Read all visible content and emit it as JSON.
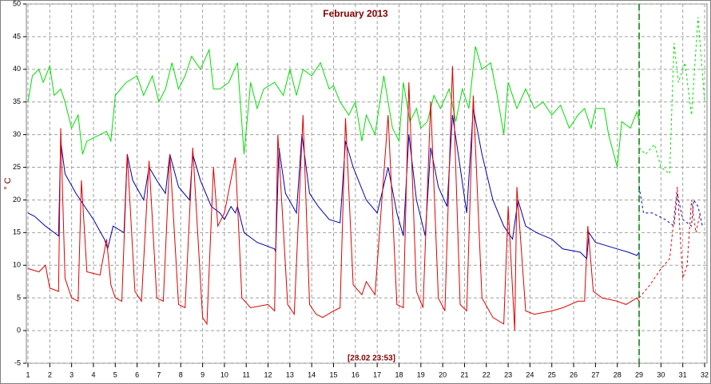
{
  "chart_data": {
    "type": "line",
    "title": "February 2013",
    "ylabel": "° C",
    "annotation": "[28.02 23:53]",
    "now_line": 29,
    "now_line_color": "#008000",
    "xlim": [
      1,
      32
    ],
    "xticks": [
      1,
      2,
      3,
      4,
      5,
      6,
      7,
      8,
      9,
      10,
      11,
      12,
      13,
      14,
      15,
      16,
      17,
      18,
      19,
      20,
      21,
      22,
      23,
      24,
      25,
      26,
      27,
      28,
      29,
      30,
      31,
      32
    ],
    "ylim": [
      -5,
      50
    ],
    "yticks": [
      -5,
      0,
      5,
      10,
      15,
      20,
      25,
      30,
      35,
      40,
      45,
      50
    ],
    "grid": true,
    "series": [
      {
        "color": "#00e000",
        "dashed": false,
        "x": [
          1.0,
          1.2,
          1.5,
          1.7,
          2.0,
          2.2,
          2.5,
          2.7,
          3.0,
          3.3,
          3.5,
          3.7,
          4.3,
          4.6,
          4.8,
          5.0,
          5.5,
          6.0,
          6.3,
          6.7,
          7.0,
          7.3,
          7.6,
          7.9,
          8.2,
          8.5,
          8.9,
          9.3,
          9.5,
          9.8,
          10.2,
          10.6,
          10.9,
          11.2,
          11.5,
          11.8,
          12.3,
          12.7,
          13.0,
          13.3,
          13.6,
          14.0,
          14.4,
          14.8,
          15.0,
          15.3,
          15.7,
          16.0,
          16.3,
          16.5,
          16.9,
          17.3,
          17.7,
          18.0,
          18.2,
          18.5,
          18.8,
          19.0,
          19.3,
          19.6,
          19.9,
          20.3,
          20.6,
          20.9,
          21.2,
          21.5,
          21.8,
          22.2,
          22.5,
          22.8,
          23.0,
          23.4,
          23.8,
          24.2,
          24.6,
          25.0,
          25.4,
          25.8,
          26.2,
          26.5,
          26.8,
          27.0,
          27.4,
          27.6,
          28.0,
          28.2,
          28.6,
          28.9,
          29.0
        ],
        "values": [
          35,
          39,
          40,
          38,
          40.5,
          36,
          37,
          35,
          31,
          33,
          27,
          29,
          30,
          30.5,
          29,
          36,
          38,
          39,
          36,
          39,
          35,
          37,
          41,
          37,
          39,
          42,
          40,
          43,
          37,
          37,
          38,
          41,
          27,
          38,
          34,
          37,
          38,
          36,
          40,
          36,
          40,
          39,
          41,
          37,
          37.5,
          35,
          33,
          35,
          29,
          33,
          30,
          39,
          31,
          29,
          38,
          32,
          34,
          31,
          32,
          36,
          34,
          37,
          32,
          37,
          34,
          43.5,
          40,
          41,
          36,
          30,
          38,
          34,
          37,
          34,
          35,
          33,
          34.5,
          31,
          33,
          34,
          31,
          34,
          34,
          30,
          25,
          32,
          31,
          33.5,
          32
        ]
      },
      {
        "color": "#00e000",
        "dashed": true,
        "x": [
          29.0,
          29.3,
          29.7,
          30.0,
          30.4,
          30.6,
          30.8,
          31.1,
          31.4,
          31.7,
          32.0
        ],
        "values": [
          28,
          27,
          28.5,
          25,
          24,
          44,
          38,
          41,
          33,
          48,
          35
        ]
      },
      {
        "color": "#0000b0",
        "dashed": false,
        "x": [
          1.0,
          1.3,
          1.8,
          2.2,
          2.4,
          2.5,
          2.7,
          3.2,
          3.6,
          4.0,
          4.5,
          4.65,
          4.9,
          5.4,
          5.55,
          5.8,
          6.3,
          6.55,
          6.9,
          7.3,
          7.5,
          7.9,
          8.4,
          8.55,
          8.9,
          9.4,
          9.8,
          10.0,
          10.3,
          10.5,
          10.6,
          10.9,
          11.5,
          12.3,
          12.35,
          12.5,
          12.8,
          13.3,
          13.55,
          13.9,
          14.3,
          14.8,
          15.3,
          15.55,
          15.9,
          16.5,
          17.0,
          17.5,
          17.9,
          18.2,
          18.45,
          18.8,
          19.2,
          19.45,
          19.8,
          20.2,
          20.45,
          20.8,
          21.1,
          21.4,
          21.8,
          22.3,
          22.8,
          23.2,
          23.45,
          23.8,
          24.3,
          25.0,
          25.5,
          26.3,
          26.6,
          26.7,
          27.0,
          27.5,
          28.0,
          28.5,
          28.9,
          29.0
        ],
        "values": [
          18,
          17.5,
          16,
          15,
          14.5,
          29,
          24,
          21,
          19,
          17,
          14,
          12.5,
          16,
          15,
          27,
          23,
          20,
          25,
          23,
          21,
          27,
          22,
          20,
          27,
          23,
          19,
          18,
          17,
          19,
          18,
          19,
          15,
          13.5,
          12.5,
          12,
          28,
          21,
          18,
          30,
          21,
          19,
          17,
          16.5,
          29,
          25,
          20,
          18,
          25,
          18,
          14.5,
          30,
          20,
          14.5,
          28,
          22,
          19,
          33,
          25,
          18,
          34,
          27,
          20,
          16,
          14,
          20,
          16,
          15,
          14,
          12.5,
          12,
          11,
          15,
          13.5,
          13,
          12.5,
          12,
          11.5,
          12
        ]
      },
      {
        "color": "#0000b0",
        "dashed": true,
        "x": [
          29.0,
          29.2,
          29.6,
          30.2,
          30.6,
          30.75,
          31.0,
          31.4,
          31.5,
          31.7,
          31.9
        ],
        "values": [
          22,
          18,
          18,
          17,
          16,
          21,
          17,
          16,
          20,
          19,
          16
        ]
      },
      {
        "color": "#e00000",
        "dashed": false,
        "x": [
          1.0,
          1.5,
          1.8,
          2.0,
          2.4,
          2.5,
          2.7,
          3.0,
          3.3,
          3.45,
          3.7,
          4.3,
          4.6,
          4.8,
          5.0,
          5.3,
          5.55,
          5.9,
          6.2,
          6.55,
          6.9,
          7.2,
          7.5,
          7.9,
          8.2,
          8.55,
          9.0,
          9.2,
          9.5,
          9.7,
          10.0,
          10.5,
          10.8,
          11.2,
          12.0,
          12.3,
          12.45,
          12.9,
          13.2,
          13.6,
          13.9,
          14.2,
          14.5,
          15.0,
          15.3,
          15.55,
          15.9,
          16.3,
          16.5,
          16.9,
          17.5,
          17.9,
          18.2,
          18.45,
          18.8,
          19.1,
          19.45,
          19.8,
          20.1,
          20.45,
          20.8,
          21.1,
          21.4,
          21.8,
          22.3,
          22.8,
          23.0,
          23.3,
          23.4,
          23.8,
          24.2,
          25.0,
          25.5,
          26.2,
          26.5,
          26.65,
          26.9,
          27.3,
          28.0,
          28.4,
          28.9,
          29.0
        ],
        "values": [
          9.5,
          9,
          10,
          6.5,
          6,
          31,
          8,
          5,
          4.5,
          23,
          9,
          8.5,
          14,
          7,
          5,
          4.5,
          27,
          6,
          4.5,
          26,
          5,
          4.5,
          27,
          4,
          3.5,
          28,
          2,
          1,
          25,
          16,
          18,
          26.5,
          5,
          3.5,
          4,
          3,
          30,
          4,
          2.5,
          33,
          4,
          2.5,
          2,
          3,
          3.5,
          32.5,
          7,
          5.5,
          7.5,
          5.5,
          33,
          4,
          3.5,
          38,
          6,
          3.5,
          35,
          5,
          3,
          40.5,
          4,
          3,
          36,
          5,
          2,
          1,
          19,
          0,
          22,
          3,
          2.5,
          3,
          3.5,
          4.5,
          4.5,
          16,
          6,
          5,
          4.5,
          4,
          5,
          4.5
        ]
      },
      {
        "color": "#e00000",
        "dashed": true,
        "x": [
          29.0,
          29.5,
          30.0,
          30.4,
          30.75,
          31.0,
          31.2,
          31.4,
          31.6,
          31.8
        ],
        "values": [
          5,
          7,
          9.5,
          11,
          22,
          8,
          10,
          20,
          15,
          18
        ]
      }
    ]
  }
}
